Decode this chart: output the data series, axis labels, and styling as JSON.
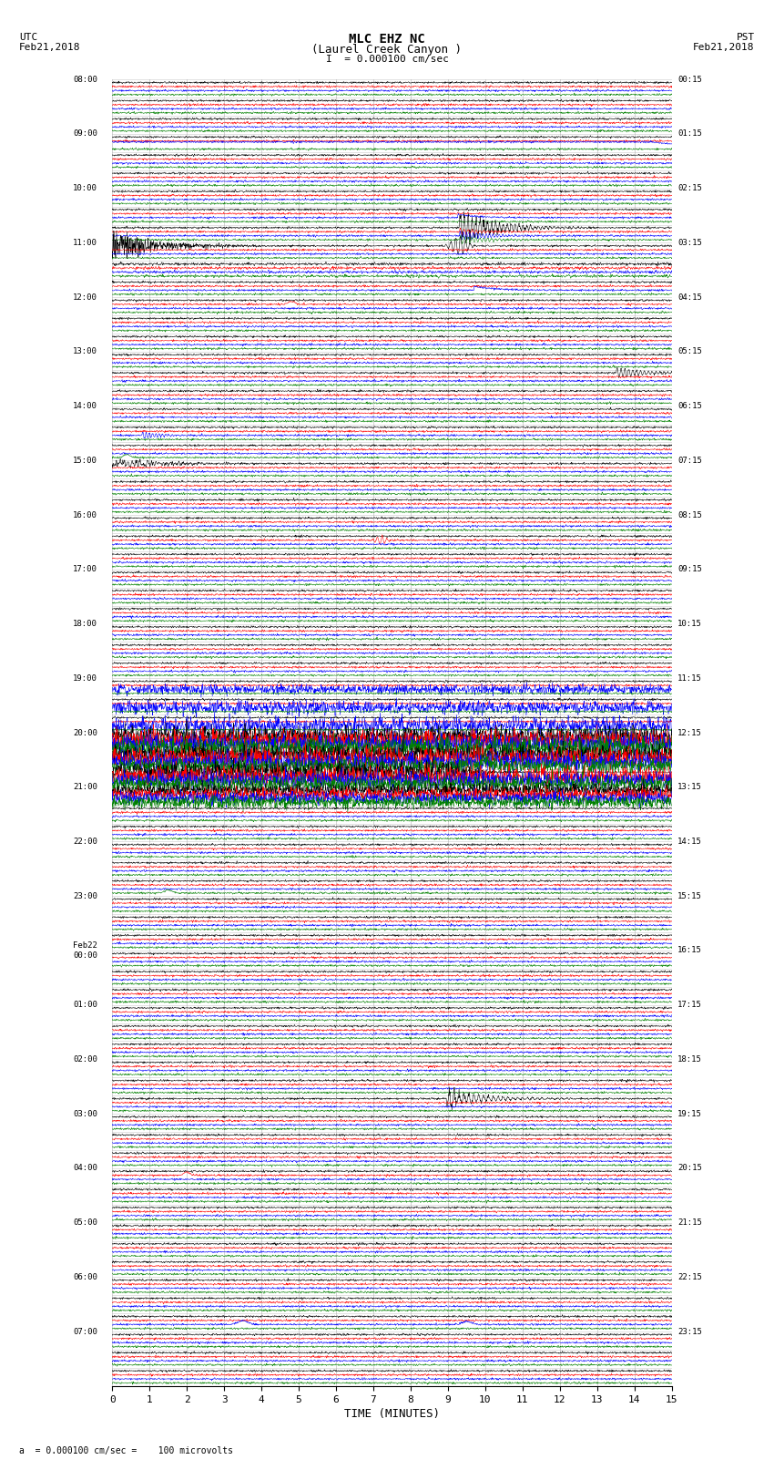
{
  "title_line1": "MLC EHZ NC",
  "title_line2": "(Laurel Creek Canyon )",
  "scale_label": "I  = 0.000100 cm/sec",
  "bottom_label": "= 0.000100 cm/sec =    100 microvolts",
  "utc_label": "UTC\nFeb21,2018",
  "pst_label": "PST\nFeb21,2018",
  "xlabel": "TIME (MINUTES)",
  "left_times_utc": [
    "08:00",
    "",
    "",
    "09:00",
    "",
    "",
    "10:00",
    "",
    "",
    "11:00",
    "",
    "",
    "12:00",
    "",
    "",
    "13:00",
    "",
    "",
    "14:00",
    "",
    "",
    "15:00",
    "",
    "",
    "16:00",
    "",
    "",
    "17:00",
    "",
    "",
    "18:00",
    "",
    "",
    "19:00",
    "",
    "",
    "20:00",
    "",
    "",
    "21:00",
    "",
    "",
    "22:00",
    "",
    "",
    "23:00",
    "",
    "",
    "Feb22\n00:00",
    "",
    "",
    "01:00",
    "",
    "",
    "02:00",
    "",
    "",
    "03:00",
    "",
    "",
    "04:00",
    "",
    "",
    "05:00",
    "",
    "",
    "06:00",
    "",
    "",
    "07:00",
    "",
    ""
  ],
  "right_times_pst": [
    "00:15",
    "",
    "",
    "01:15",
    "",
    "",
    "02:15",
    "",
    "",
    "03:15",
    "",
    "",
    "04:15",
    "",
    "",
    "05:15",
    "",
    "",
    "06:15",
    "",
    "",
    "07:15",
    "",
    "",
    "08:15",
    "",
    "",
    "09:15",
    "",
    "",
    "10:15",
    "",
    "",
    "11:15",
    "",
    "",
    "12:15",
    "",
    "",
    "13:15",
    "",
    "",
    "14:15",
    "",
    "",
    "15:15",
    "",
    "",
    "16:15",
    "",
    "",
    "17:15",
    "",
    "",
    "18:15",
    "",
    "",
    "19:15",
    "",
    "",
    "20:15",
    "",
    "",
    "21:15",
    "",
    "",
    "22:15",
    "",
    "",
    "23:15",
    "",
    ""
  ],
  "num_rows": 72,
  "colors": [
    "black",
    "red",
    "blue",
    "green"
  ],
  "background_color": "white",
  "grid_color": "#aaaaaa",
  "fig_width": 8.5,
  "fig_height": 16.13,
  "xmin": 0,
  "xmax": 15,
  "xticks": [
    0,
    1,
    2,
    3,
    4,
    5,
    6,
    7,
    8,
    9,
    10,
    11,
    12,
    13,
    14,
    15
  ]
}
